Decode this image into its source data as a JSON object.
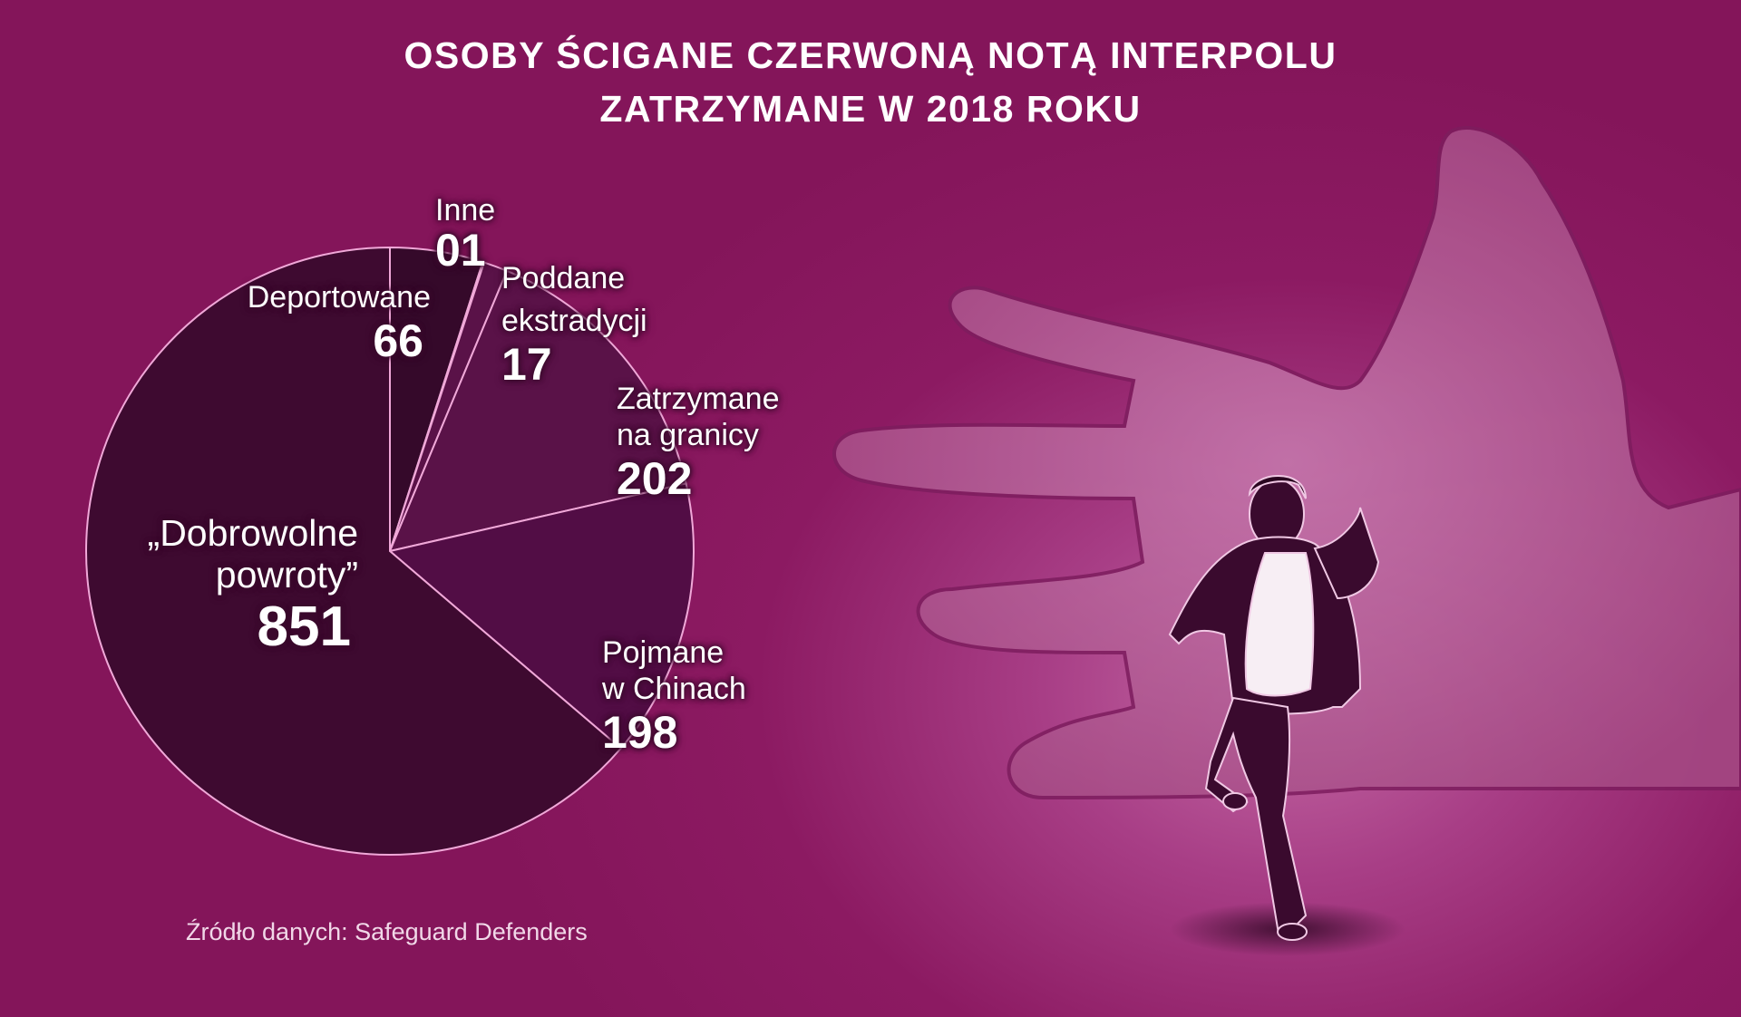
{
  "title_line1": "OSOBY ŚCIGANE CZERWONĄ NOTĄ INTERPOLU",
  "title_line2": "ZATRZYMANE W 2018 ROKU",
  "source": "Źródło danych: Safeguard Defenders",
  "colors": {
    "background": "#8c1a62",
    "slice_dobrowolne": "#3e0a30",
    "slice_deportowane": "#35092a",
    "slice_inne": "#5a1248",
    "slice_poddane": "#5a1248",
    "slice_zatrzymane": "#5a1248",
    "slice_pojmane": "#520d45",
    "outline": "#f0a8d8"
  },
  "labels": {
    "inne_name": "Inne",
    "inne_value": "01",
    "deportowane_name": "Deportowane",
    "deportowane_value": "66",
    "poddane_name1": "Poddane",
    "poddane_name2": "ekstradycji",
    "poddane_value": "17",
    "zatrzymane_name1": "Zatrzymane",
    "zatrzymane_name2": "na granicy",
    "zatrzymane_value": "202",
    "pojmane_name1": "Pojmane",
    "pojmane_name2": "w Chinach",
    "pojmane_value": "198",
    "dobrowolne_name1": "„Dobrowolne",
    "dobrowolne_name2": "powroty”",
    "dobrowolne_value": "851"
  },
  "chart_data": {
    "type": "pie",
    "title": "OSOBY ŚCIGANE CZERWONĄ NOTĄ INTERPOLU ZATRZYMANE W 2018 ROKU",
    "categories": [
      "Deportowane",
      "Inne",
      "Poddane ekstradycji",
      "Zatrzymane na granicy",
      "Pojmane w Chinach",
      "„Dobrowolne powroty”"
    ],
    "values": [
      66,
      1,
      17,
      202,
      198,
      851
    ]
  }
}
